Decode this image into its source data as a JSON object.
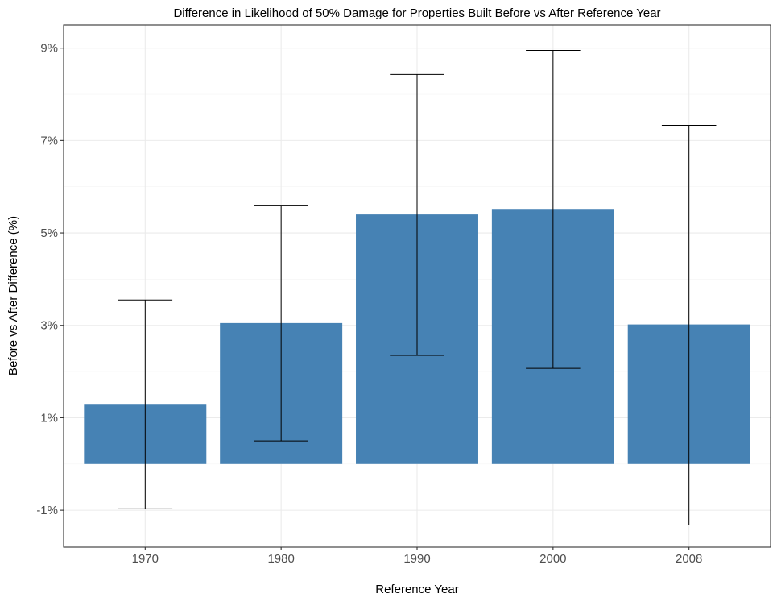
{
  "chart_data": {
    "type": "bar",
    "title": "Difference in Likelihood of 50% Damage for Properties Built Before vs After Reference Year",
    "xlabel": "Reference Year",
    "ylabel": "Before vs After Difference (%)",
    "categories": [
      "1970",
      "1980",
      "1990",
      "2000",
      "2008"
    ],
    "values": [
      1.3,
      3.05,
      5.4,
      5.52,
      3.02
    ],
    "error_low": [
      -0.97,
      0.5,
      2.35,
      2.07,
      -1.32
    ],
    "error_high": [
      3.55,
      5.6,
      8.43,
      8.95,
      7.33
    ],
    "ylim": [
      -1.8,
      9.5
    ],
    "yticks": [
      -1,
      1,
      3,
      5,
      7,
      9
    ],
    "ytick_labels": [
      "-1%",
      "1%",
      "3%",
      "5%",
      "7%",
      "9%"
    ],
    "bar_color": "#4682B4",
    "grid": true,
    "legend": "none"
  }
}
